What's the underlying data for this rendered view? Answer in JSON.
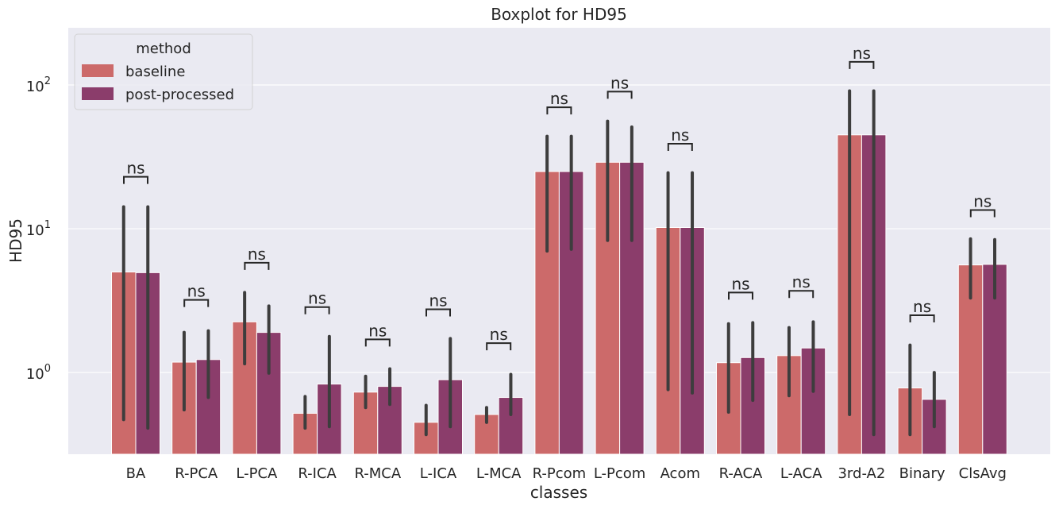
{
  "chart_data": {
    "type": "bar",
    "title": "Boxplot for HD95",
    "xlabel": "classes",
    "ylabel": "HD95",
    "yscale": "log",
    "ylim": [
      0.27,
      250
    ],
    "yticks": [
      1,
      10,
      100
    ],
    "ytick_labels": [
      {
        "base": "10",
        "exp": "0"
      },
      {
        "base": "10",
        "exp": "1"
      },
      {
        "base": "10",
        "exp": "2"
      }
    ],
    "categories": [
      "BA",
      "R-PCA",
      "L-PCA",
      "R-ICA",
      "R-MCA",
      "L-ICA",
      "L-MCA",
      "R-Pcom",
      "L-Pcom",
      "Acom",
      "R-ACA",
      "L-ACA",
      "3rd-A2",
      "Binary",
      "ClsAvg"
    ],
    "legend": {
      "title": "method",
      "position": "top-left"
    },
    "grid": true,
    "series": [
      {
        "name": "baseline",
        "color": "#cc6a6a",
        "values": [
          5.0,
          1.18,
          2.25,
          0.52,
          0.73,
          0.45,
          0.51,
          25.0,
          29.0,
          10.2,
          1.17,
          1.31,
          45.0,
          0.78,
          5.6
        ],
        "ci_low": [
          0.47,
          0.55,
          1.15,
          0.41,
          0.57,
          0.37,
          0.45,
          7.0,
          8.3,
          0.76,
          0.53,
          0.69,
          0.51,
          0.37,
          3.3
        ],
        "ci_high": [
          14.2,
          1.9,
          3.6,
          0.68,
          0.94,
          0.59,
          0.57,
          44.0,
          56.0,
          24.5,
          2.18,
          2.05,
          91.0,
          1.55,
          8.5
        ]
      },
      {
        "name": "post-processed",
        "color": "#8b3d6b",
        "values": [
          4.95,
          1.23,
          1.9,
          0.83,
          0.8,
          0.89,
          0.67,
          25.0,
          29.0,
          10.2,
          1.27,
          1.48,
          45.0,
          0.65,
          5.65
        ],
        "ci_low": [
          0.41,
          0.67,
          0.99,
          0.42,
          0.6,
          0.42,
          0.51,
          7.2,
          8.3,
          0.72,
          0.64,
          0.74,
          0.37,
          0.42,
          3.3
        ],
        "ci_high": [
          14.2,
          1.95,
          2.9,
          1.78,
          1.06,
          1.72,
          0.97,
          44.0,
          51.0,
          24.5,
          2.22,
          2.25,
          91.0,
          1.0,
          8.4
        ]
      }
    ],
    "annotations": [
      {
        "category": "BA",
        "text": "ns",
        "y": 23
      },
      {
        "category": "R-PCA",
        "text": "ns",
        "y": 3.2
      },
      {
        "category": "L-PCA",
        "text": "ns",
        "y": 5.8
      },
      {
        "category": "R-ICA",
        "text": "ns",
        "y": 2.85
      },
      {
        "category": "R-MCA",
        "text": "ns",
        "y": 1.7
      },
      {
        "category": "L-ICA",
        "text": "ns",
        "y": 2.75
      },
      {
        "category": "L-MCA",
        "text": "ns",
        "y": 1.6
      },
      {
        "category": "R-Pcom",
        "text": "ns",
        "y": 70
      },
      {
        "category": "L-Pcom",
        "text": "ns",
        "y": 90
      },
      {
        "category": "Acom",
        "text": "ns",
        "y": 39
      },
      {
        "category": "R-ACA",
        "text": "ns",
        "y": 3.6
      },
      {
        "category": "L-ACA",
        "text": "ns",
        "y": 3.7
      },
      {
        "category": "3rd-A2",
        "text": "ns",
        "y": 145
      },
      {
        "category": "Binary",
        "text": "ns",
        "y": 2.5
      },
      {
        "category": "ClsAvg",
        "text": "ns",
        "y": 13.5
      }
    ]
  }
}
